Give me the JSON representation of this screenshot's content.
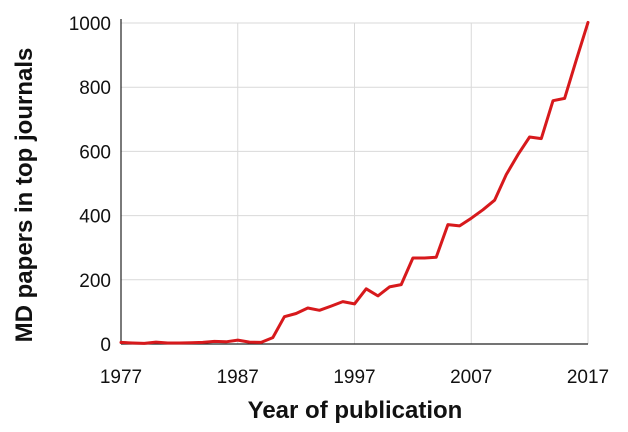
{
  "chart_data": {
    "type": "line",
    "xlabel": "Year of publication",
    "ylabel": "MD papers in top journals",
    "xlim": [
      1977,
      2017
    ],
    "ylim": [
      0,
      1000
    ],
    "x_ticks": [
      1977,
      1987,
      1997,
      2007,
      2017
    ],
    "y_ticks": [
      0,
      200,
      400,
      600,
      800,
      1000
    ],
    "grid": true,
    "series": [
      {
        "color": "#d7191c",
        "x": [
          1977,
          1978,
          1979,
          1980,
          1981,
          1982,
          1983,
          1984,
          1985,
          1986,
          1987,
          1988,
          1989,
          1990,
          1991,
          1992,
          1993,
          1994,
          1995,
          1996,
          1997,
          1998,
          1999,
          2000,
          2001,
          2002,
          2003,
          2004,
          2005,
          2006,
          2007,
          2008,
          2009,
          2010,
          2011,
          2012,
          2013,
          2014,
          2015,
          2016,
          2017
        ],
        "y": [
          5,
          3,
          2,
          6,
          3,
          3,
          4,
          5,
          8,
          7,
          12,
          6,
          5,
          20,
          85,
          95,
          112,
          105,
          118,
          132,
          125,
          172,
          150,
          178,
          185,
          268,
          268,
          270,
          372,
          368,
          392,
          418,
          448,
          528,
          590,
          645,
          640,
          758,
          765,
          885,
          1002
        ]
      }
    ]
  }
}
